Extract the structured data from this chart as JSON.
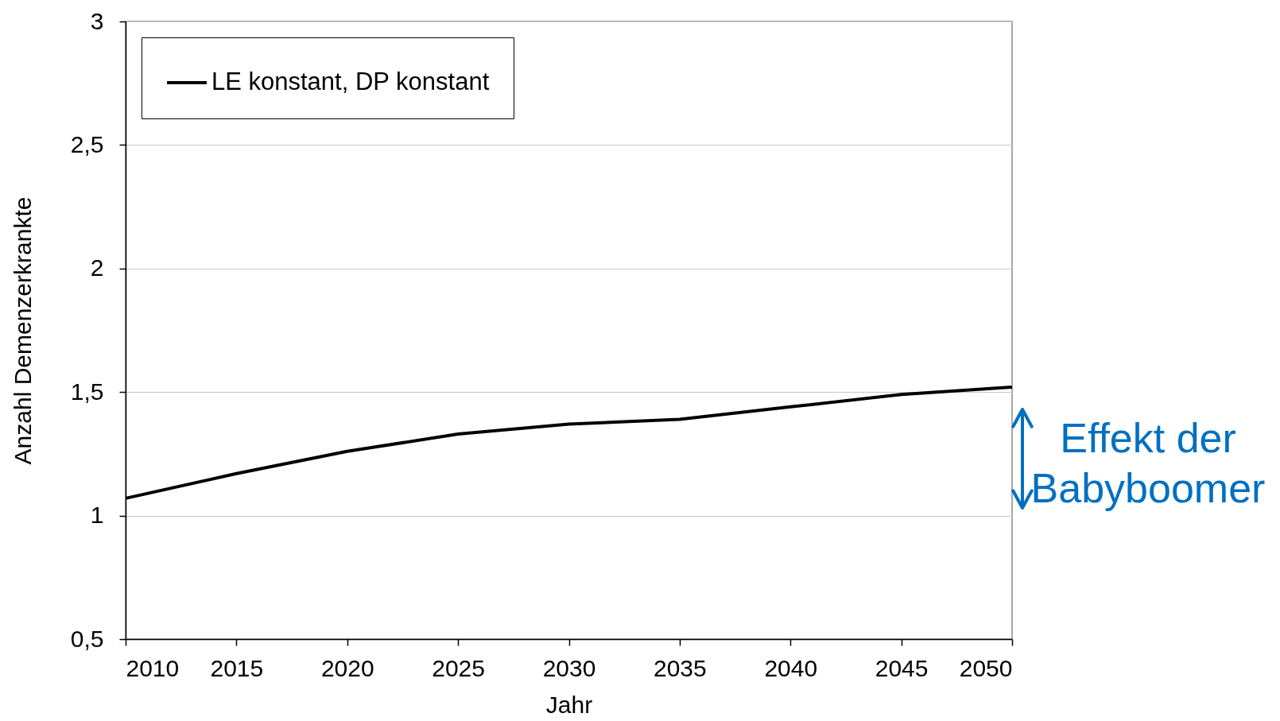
{
  "chart_data": {
    "type": "line",
    "xlabel": "Jahr",
    "ylabel": "Anzahl Demenzerkrankte",
    "x": [
      2010,
      2015,
      2020,
      2025,
      2030,
      2035,
      2040,
      2045,
      2050
    ],
    "series": [
      {
        "name": "LE konstant, DP konstant",
        "color": "#000000",
        "values": [
          1.07,
          1.17,
          1.26,
          1.33,
          1.37,
          1.39,
          1.44,
          1.49,
          1.52
        ]
      }
    ],
    "xlim": [
      2010,
      2050
    ],
    "ylim": [
      0.5,
      3
    ],
    "xticks": [
      2010,
      2015,
      2020,
      2025,
      2030,
      2035,
      2040,
      2045,
      2050
    ],
    "yticks": [
      {
        "value": 0.5,
        "label": "0,5"
      },
      1,
      {
        "value": 1.5,
        "label": "1,5"
      },
      2,
      {
        "value": 2.5,
        "label": "2,5"
      },
      3
    ],
    "grid": "y",
    "legend": "top left",
    "marker": "none",
    "line_style": "solid",
    "annotations": [
      "Effekt der Babyboomer"
    ]
  }
}
